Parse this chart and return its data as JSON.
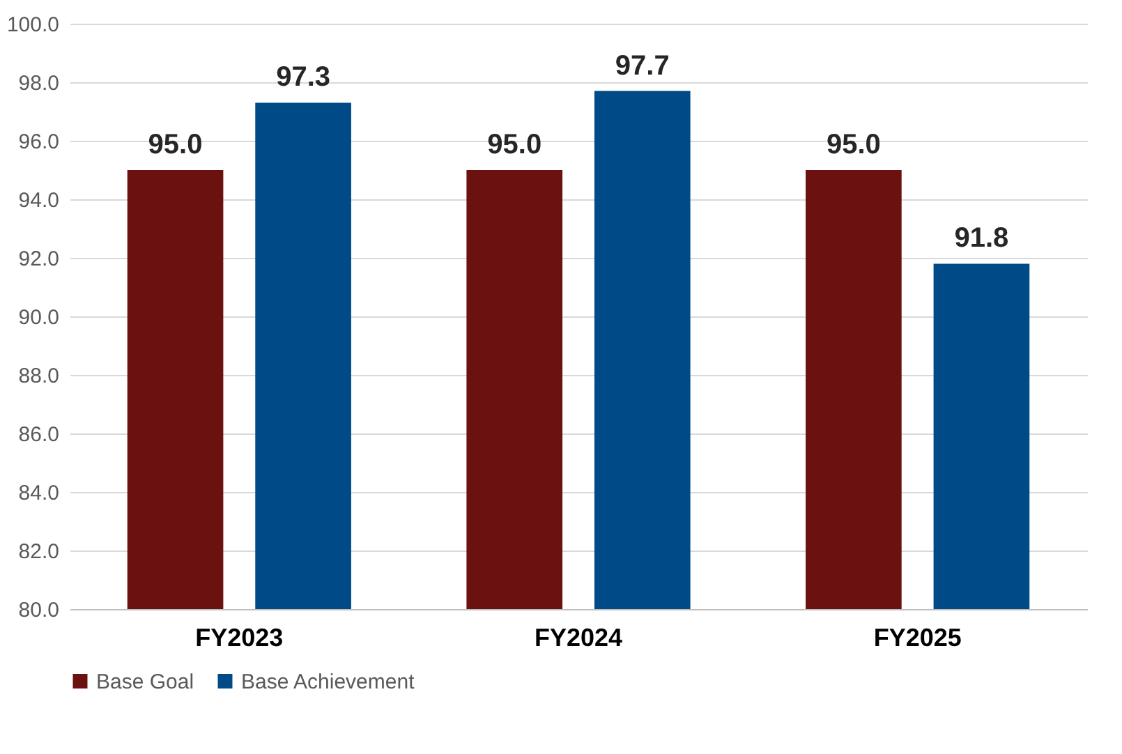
{
  "chart_data": {
    "type": "bar",
    "categories": [
      "FY2023",
      "FY2024",
      "FY2025"
    ],
    "series": [
      {
        "name": "Base Goal",
        "color": "#6b1210",
        "values": [
          95.0,
          95.0,
          95.0
        ],
        "value_labels": [
          "95.0",
          "95.0",
          "95.0"
        ]
      },
      {
        "name": "Base Achievement",
        "color": "#004b87",
        "values": [
          97.3,
          97.7,
          91.8
        ],
        "value_labels": [
          "97.3",
          "97.7",
          "91.8"
        ]
      }
    ],
    "ylim": [
      80,
      100
    ],
    "yticks": [
      {
        "value": 80,
        "label": "80.0"
      },
      {
        "value": 82,
        "label": "82.0"
      },
      {
        "value": 84,
        "label": "84.0"
      },
      {
        "value": 86,
        "label": "86.0"
      },
      {
        "value": 88,
        "label": "88.0"
      },
      {
        "value": 90,
        "label": "90.0"
      },
      {
        "value": 92,
        "label": "92.0"
      },
      {
        "value": 94,
        "label": "94.0"
      },
      {
        "value": 96,
        "label": "96.0"
      },
      {
        "value": 98,
        "label": "98.0"
      },
      {
        "value": 100,
        "label": "100.0"
      }
    ],
    "grid": "y",
    "legend": "bottom"
  }
}
